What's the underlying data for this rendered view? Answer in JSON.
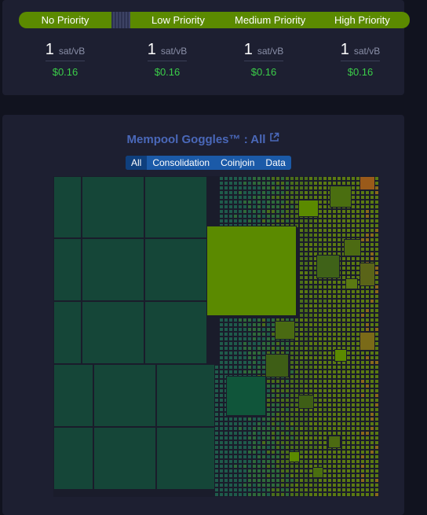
{
  "fee_bar": {
    "no_priority": "No Priority",
    "low_priority": "Low Priority",
    "medium_priority": "Medium Priority",
    "high_priority": "High Priority"
  },
  "fees": [
    {
      "rate": "1",
      "unit": "sat/vB",
      "usd": "$0.16"
    },
    {
      "rate": "1",
      "unit": "sat/vB",
      "usd": "$0.16"
    },
    {
      "rate": "1",
      "unit": "sat/vB",
      "usd": "$0.16"
    },
    {
      "rate": "1",
      "unit": "sat/vB",
      "usd": "$0.16"
    }
  ],
  "goggles": {
    "title": "Mempool Goggles™ : All",
    "filters": [
      "All",
      "Consolidation",
      "Coinjoin",
      "Data"
    ],
    "active_filter": "All"
  },
  "colors": {
    "bar_green": "#5b8a00",
    "tx_dark_teal": "#154638",
    "tx_green": "#5b8a00",
    "usd_text": "#3bcc49",
    "title_blue": "#4a68b9"
  }
}
